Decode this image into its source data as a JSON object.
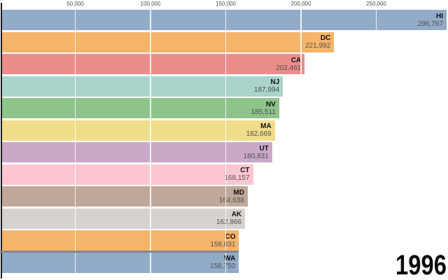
{
  "chart_data": {
    "type": "bar",
    "orientation": "horizontal",
    "title": "",
    "year_label": "1996",
    "axis": {
      "position": "top",
      "tick_labels": [
        "50,000",
        "100,000",
        "150,000",
        "200,000",
        "250,000"
      ],
      "tick_values": [
        50000,
        100000,
        150000,
        200000,
        250000
      ],
      "xlim": [
        0,
        297000
      ],
      "grid": true
    },
    "bars": [
      {
        "label": "HI",
        "value": 296767,
        "display": "296,767",
        "color": "#91abc9"
      },
      {
        "label": "DC",
        "value": 221992,
        "display": "221,992",
        "color": "#f6b46b"
      },
      {
        "label": "CA",
        "value": 202461,
        "display": "202,461",
        "color": "#ec8c8b"
      },
      {
        "label": "NJ",
        "value": 187994,
        "display": "187,994",
        "color": "#aad3cb"
      },
      {
        "label": "NV",
        "value": 185511,
        "display": "185,511",
        "color": "#8dc48a"
      },
      {
        "label": "MA",
        "value": 182669,
        "display": "182,669",
        "color": "#f0dd8a"
      },
      {
        "label": "UT",
        "value": 180831,
        "display": "180,831",
        "color": "#caa9c8"
      },
      {
        "label": "CT",
        "value": 168157,
        "display": "168,157",
        "color": "#fcc6d0"
      },
      {
        "label": "MD",
        "value": 164638,
        "display": "164,638",
        "color": "#c0a799"
      },
      {
        "label": "AK",
        "value": 162866,
        "display": "162,866",
        "color": "#d6d2cf"
      },
      {
        "label": "CO",
        "value": 158831,
        "display": "158,831",
        "color": "#f6b46b"
      },
      {
        "label": "WA",
        "value": 158750,
        "display": "158,750",
        "color": "#91abc9"
      }
    ],
    "colors": {
      "axis_line": "#1c1c1c",
      "tick_text": "#4d4d4d",
      "bar_code_text": "#101010",
      "bar_value_text": "#4f4f4f",
      "gridline": "#ffffff",
      "artifact_line": "#85878c",
      "year_text": "#0a0a0a",
      "background": "#ffffff"
    }
  }
}
